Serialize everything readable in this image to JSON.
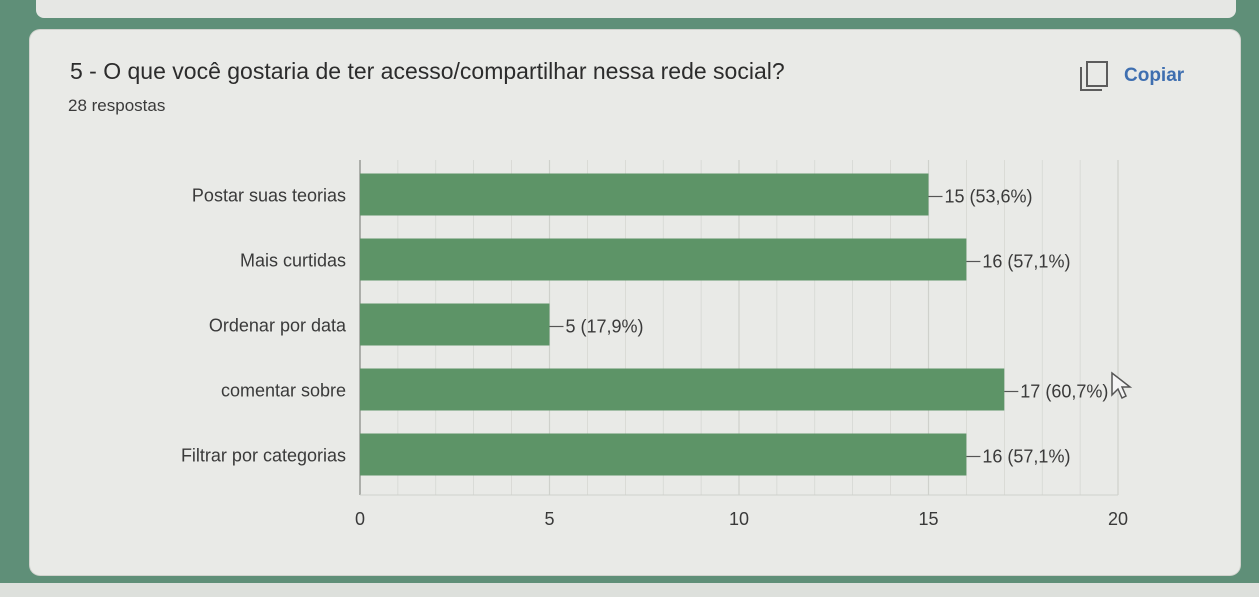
{
  "question": {
    "title": "5 - O que você gostaria de ter acesso/compartilhar nessa rede social?",
    "responses": "28 respostas",
    "copy_label": "Copiar"
  },
  "icons": {
    "copy": "copy-icon",
    "cursor": "mouse-cursor-icon"
  },
  "colors": {
    "bar": "#5d9467",
    "grid": "#cfd1cc",
    "text": "#3a3a3a"
  },
  "chart_data": {
    "type": "bar",
    "orientation": "horizontal",
    "categories": [
      "Postar suas teorias",
      "Mais curtidas",
      "Ordenar por data",
      "comentar sobre",
      "Filtrar por categorias"
    ],
    "values": [
      15,
      16,
      5,
      17,
      16
    ],
    "data_labels": [
      "15 (53,6%)",
      "16 (57,1%)",
      "5 (17,9%)",
      "17 (60,7%)",
      "16 (57,1%)"
    ],
    "xlim": [
      0,
      20
    ],
    "xticks": [
      "0",
      "5",
      "10",
      "15",
      "20"
    ],
    "grid": true,
    "title": "",
    "xlabel": "",
    "ylabel": ""
  }
}
